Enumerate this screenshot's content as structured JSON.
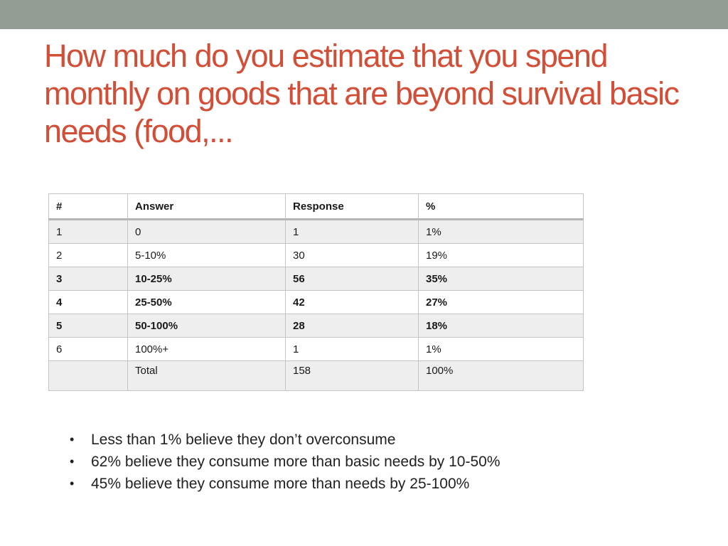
{
  "slide": {
    "title": "How much do you estimate that you spend monthly on goods that are beyond survival basic needs (food,...",
    "colors": {
      "top_bar": "#939d94",
      "title": "#d24e36",
      "row_shade": "#eeeeee",
      "border": "#c4c4c4"
    }
  },
  "table": {
    "headers": [
      "#",
      "Answer",
      "Response",
      "%"
    ],
    "rows": [
      {
        "num": "1",
        "answer": "0",
        "response": "1",
        "pct": "1%",
        "bold": false
      },
      {
        "num": "2",
        "answer": "5-10%",
        "response": "30",
        "pct": "19%",
        "bold": false
      },
      {
        "num": "3",
        "answer": "10-25%",
        "response": "56",
        "pct": "35%",
        "bold": true
      },
      {
        "num": "4",
        "answer": "25-50%",
        "response": "42",
        "pct": "27%",
        "bold": true
      },
      {
        "num": "5",
        "answer": "50-100%",
        "response": "28",
        "pct": "18%",
        "bold": true
      },
      {
        "num": "6",
        "answer": "100%+",
        "response": "1",
        "pct": "1%",
        "bold": false
      }
    ],
    "total": {
      "num": "",
      "answer": "Total",
      "response": "158",
      "pct": "100%"
    }
  },
  "bullets": [
    "Less than 1% believe they don’t overconsume",
    "62% believe they consume more than basic needs by 10-50%",
    "45% believe they consume more than needs by 25-100%"
  ]
}
